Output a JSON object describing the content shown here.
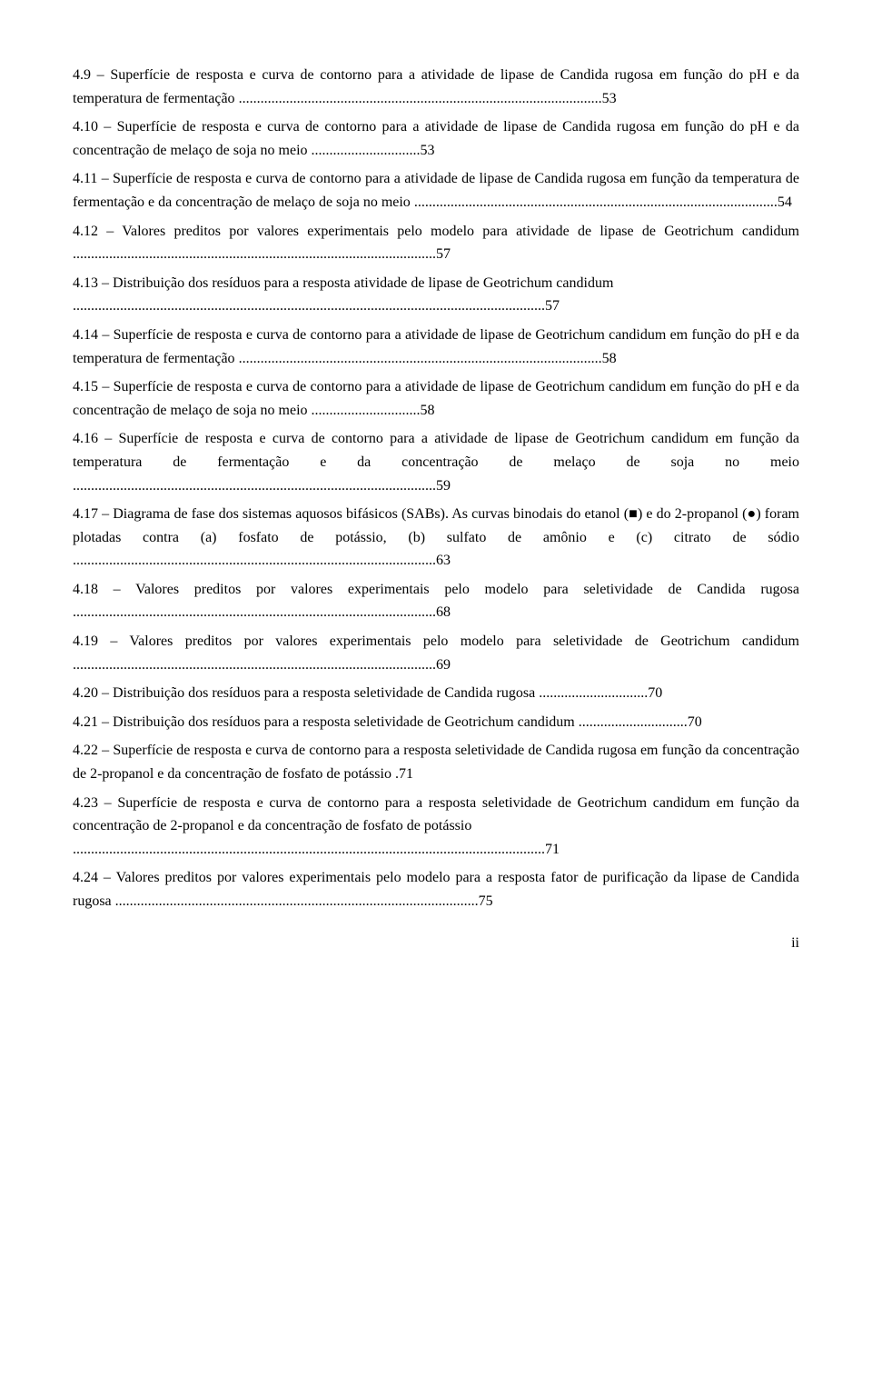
{
  "entries": [
    {
      "label": "4.9",
      "text": " – Superfície de resposta e curva de contorno para a atividade de lipase de Candida rugosa em função do pH e da temperatura de fermentação",
      "page": "53",
      "dots_long": true
    },
    {
      "label": "4.10",
      "text": " – Superfície de resposta e curva de contorno para a atividade de lipase de Candida rugosa em função do pH e da concentração de melaço de soja no meio",
      "page": "53",
      "dots_long": false
    },
    {
      "label": "4.11",
      "text": " – Superfície de resposta e curva de contorno para a atividade de lipase de Candida rugosa em função da temperatura de fermentação e da concentração de melaço de soja no meio",
      "page": "54",
      "dots_long": true
    },
    {
      "label": "4.12",
      "text": " – Valores preditos por valores experimentais pelo modelo para atividade de lipase de Geotrichum candidum",
      "page": "57",
      "dots_long": true
    },
    {
      "label": "4.13",
      "text": " – Distribuição dos resíduos para a resposta atividade de lipase de Geotrichum candidum ",
      "page": "57",
      "newline_before_dots": true
    },
    {
      "label": "4.14",
      "text": " – Superfície de resposta e curva de contorno para a atividade de lipase de Geotrichum candidum em função do pH e da temperatura de fermentação",
      "page": "58",
      "dots_long": true
    },
    {
      "label": "4.15",
      "text": " – Superfície de resposta e curva de contorno para a atividade de lipase de Geotrichum candidum em função do pH e da concentração de melaço de soja no meio",
      "page": "58",
      "dots_long": false
    },
    {
      "label": "4.16",
      "text": " – Superfície de resposta e curva de contorno para a atividade de lipase de Geotrichum candidum em função da temperatura de fermentação e da concentração de melaço de soja no meio",
      "page": "59",
      "dots_long": true
    },
    {
      "label": "4.17",
      "text": " – Diagrama de fase dos sistemas aquosos bifásicos (SABs). As curvas binodais do etanol (■) e do 2-propanol (●) foram plotadas contra (a) fosfato de potássio, (b) sulfato de amônio e (c) citrato de sódio",
      "page": "63",
      "dots_long": true
    },
    {
      "label": "4.18",
      "text": " – Valores preditos por valores experimentais pelo modelo para seletividade de Candida rugosa",
      "page": "68",
      "dots_long": true
    },
    {
      "label": "4.19",
      "text": " – Valores preditos por valores experimentais pelo modelo para seletividade de Geotrichum candidum",
      "page": "69",
      "dots_long": true
    },
    {
      "label": "4.20",
      "text": " – Distribuição dos resíduos para a resposta seletividade de Candida rugosa",
      "page": "70",
      "dots_long": false
    },
    {
      "label": "4.21",
      "text": " – Distribuição dos resíduos para a resposta seletividade de Geotrichum candidum",
      "page": "70",
      "dots_long": false
    },
    {
      "label": "4.22",
      "text": " – Superfície de resposta e curva de contorno para a resposta seletividade de Candida rugosa em função da concentração de 2-propanol e da concentração de fosfato de potássio",
      "page": "71",
      "no_dots": true
    },
    {
      "label": "4.23",
      "text": " – Superfície de resposta e curva de contorno para a resposta seletividade de Geotrichum candidum em função da concentração de 2-propanol e da concentração de fosfato de potássio ",
      "page": "71",
      "newline_before_dots": true
    },
    {
      "label": "4.24",
      "text": " – Valores preditos por valores experimentais pelo modelo para a resposta fator de purificação da lipase de Candida rugosa",
      "page": "75",
      "dots_long": true
    }
  ],
  "page_roman": "ii"
}
